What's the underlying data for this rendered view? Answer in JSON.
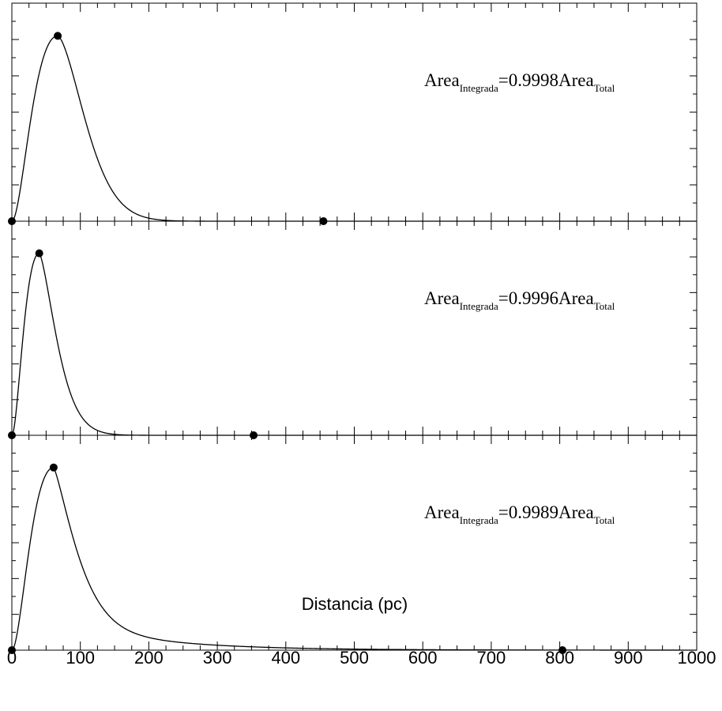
{
  "chart_data": {
    "type": "line",
    "xlabel": "Distancia (pc)",
    "xlim": [
      0,
      1000
    ],
    "x_ticks": [
      "0",
      "100",
      "200",
      "300",
      "400",
      "500",
      "600",
      "700",
      "800",
      "900",
      "1000"
    ],
    "panels": [
      {
        "annotation": {
          "main": "Area",
          "sub": "Integrada",
          "mid": "=0.9998Area",
          "sub2": "Total"
        },
        "curve": {
          "mode": 67,
          "rise_k": 2.0,
          "fall_scale": 55,
          "fall_power": 1.6
        },
        "markers": [
          {
            "x": 0,
            "y": 0
          },
          {
            "x": 67,
            "y": 1
          },
          {
            "x": 455,
            "y": 0
          }
        ]
      },
      {
        "annotation": {
          "main": "Area",
          "sub": "Integrada",
          "mid": "=0.9996Area",
          "sub2": "Total"
        },
        "curve": {
          "mode": 40,
          "rise_k": 2.0,
          "fall_scale": 35,
          "fall_power": 1.45
        },
        "markers": [
          {
            "x": 0,
            "y": 0
          },
          {
            "x": 40,
            "y": 1
          },
          {
            "x": 353,
            "y": 0
          }
        ]
      },
      {
        "annotation": {
          "main": "Area",
          "sub": "Integrada",
          "mid": "=0.9989Area",
          "sub2": "Total"
        },
        "curve": {
          "mode": 61,
          "rise_k": 2.0,
          "fall_scale": 45,
          "fall_power": 1.3,
          "tail_amp": 0.17,
          "tail_decay": 130
        },
        "markers": [
          {
            "x": 0,
            "y": 0
          },
          {
            "x": 61,
            "y": 1
          },
          {
            "x": 804,
            "y": 0
          }
        ]
      }
    ]
  }
}
